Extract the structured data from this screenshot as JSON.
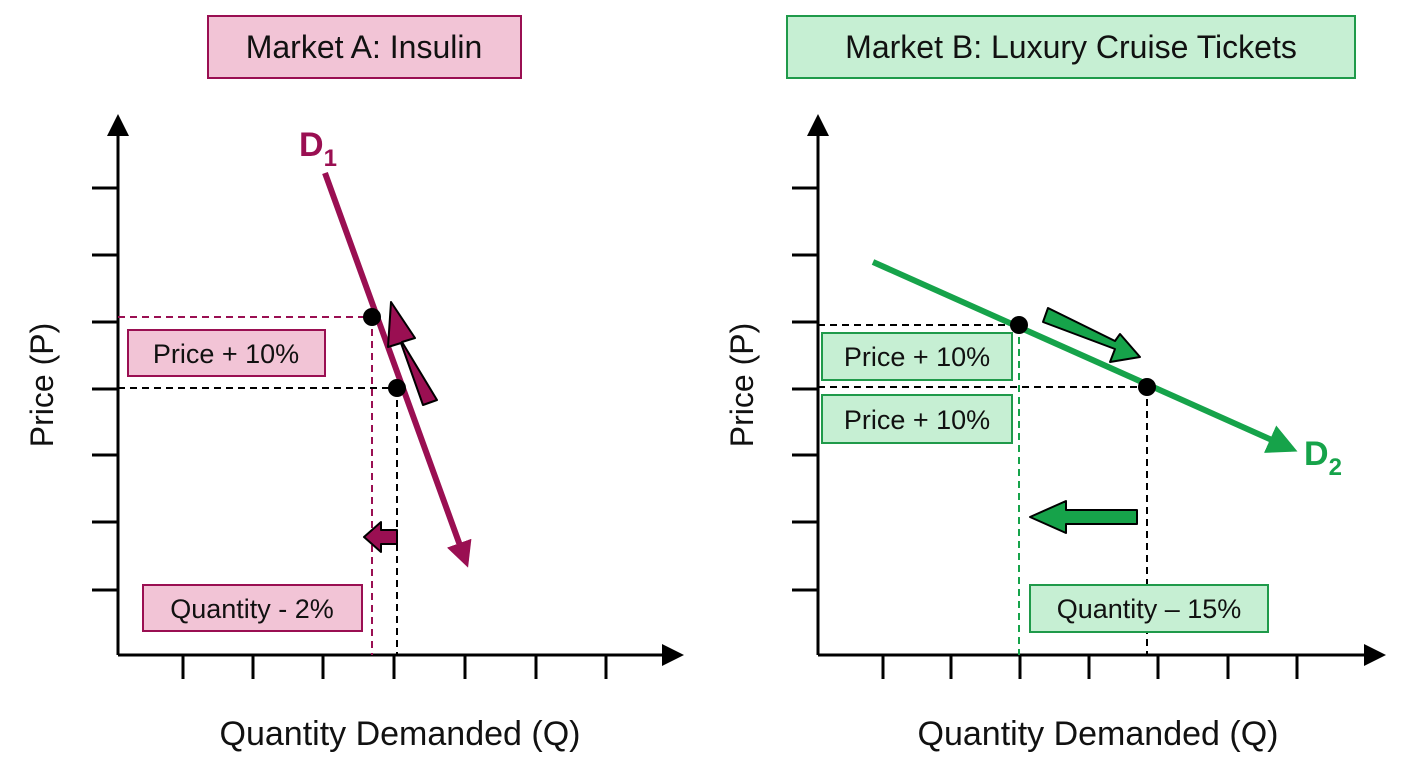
{
  "colors": {
    "market_a": "#9a0f52",
    "market_a_fill": "#f2c4d6",
    "market_b": "#16a34a",
    "market_b_fill": "#c6efd3",
    "market_b_border": "#1f9a4a",
    "axis": "#000000"
  },
  "market_a": {
    "title": "Market A: Insulin",
    "y_axis_label": "Price (P)",
    "x_axis_label": "Quantity Demanded (Q)",
    "curve_label": "D",
    "curve_label_sub": "1",
    "price_label": "Price + 10%",
    "quantity_label": "Quantity - 2%"
  },
  "market_b": {
    "title": "Market B: Luxury Cruise Tickets",
    "y_axis_label": "Price (P)",
    "x_axis_label": "Quantity Demanded (Q)",
    "curve_label": "D",
    "curve_label_sub": "2",
    "price_label_top": "Price + 10%",
    "price_label_bottom": "Price + 10%",
    "quantity_label": "Quantity – 15%"
  }
}
